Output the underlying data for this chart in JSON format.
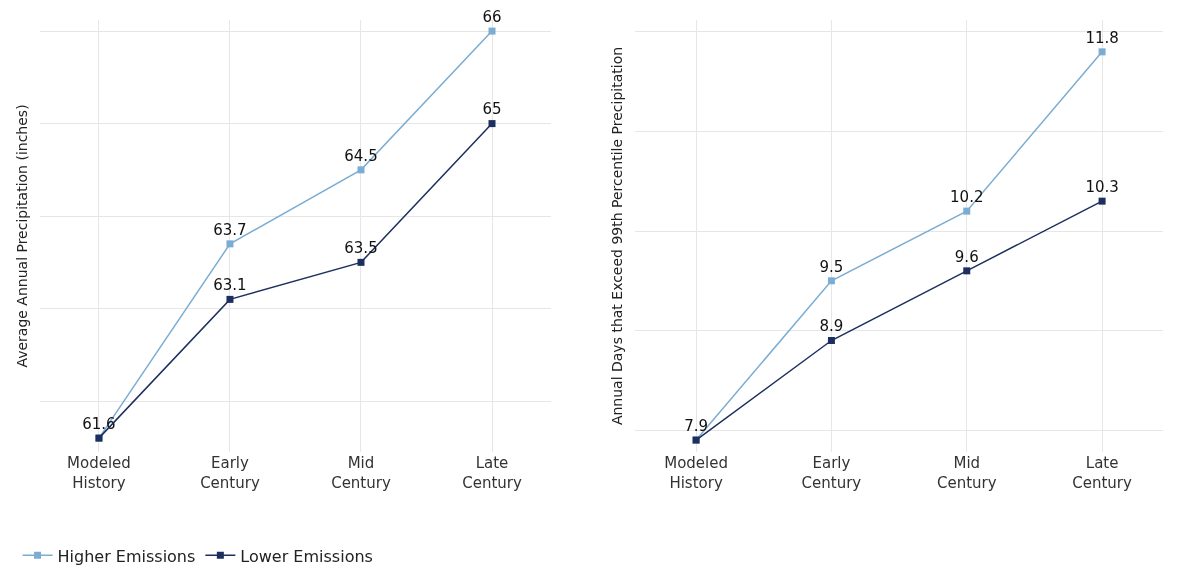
{
  "chart_data": [
    {
      "type": "line",
      "ylabel": "Average Annual Precipitation (inches)",
      "categories": [
        "Modeled\nHistory",
        "Early\nCentury",
        "Mid\nCentury",
        "Late\nCentury"
      ],
      "series": [
        {
          "name": "Higher Emissions",
          "color": "#7badd3",
          "values": [
            61.6,
            63.7,
            64.5,
            66
          ]
        },
        {
          "name": "Lower Emissions",
          "color": "#1c2f5e",
          "values": [
            61.6,
            63.1,
            63.5,
            65
          ],
          "value_labels": [
            null,
            "63.1",
            "63.5",
            "65"
          ]
        }
      ],
      "ylim": [
        61.45,
        66.12
      ],
      "yticks": [
        {
          "value": 62,
          "label": null
        },
        {
          "value": 63,
          "label": null
        },
        {
          "value": 64,
          "label": null
        },
        {
          "value": 65,
          "label": null
        },
        {
          "value": 66,
          "label": null
        }
      ],
      "tick_labels": "x",
      "grid": true,
      "legend": "bottom left",
      "marker": "square",
      "line_style": "solid",
      "data_labels": true
    },
    {
      "type": "line",
      "ylabel": "Annual Days that Exceed 99th Percentile Precipitation",
      "categories": [
        "Modeled\nHistory",
        "Early\nCentury",
        "Mid\nCentury",
        "Late\nCentury"
      ],
      "series": [
        {
          "color": "#7badd3",
          "values": [
            7.9,
            9.5,
            10.2,
            11.8
          ]
        },
        {
          "color": "#1c2f5e",
          "values": [
            7.9,
            8.9,
            9.6,
            10.3
          ],
          "value_labels": [
            null,
            "8.9",
            "9.6",
            "10.3"
          ]
        }
      ],
      "ylim": [
        7.78,
        12.12
      ],
      "yticks": [
        {
          "value": 8,
          "label": null
        },
        {
          "value": 9,
          "label": null
        },
        {
          "value": 10,
          "label": null
        },
        {
          "value": 11,
          "label": null
        },
        {
          "value": 12,
          "label": null
        }
      ],
      "tick_labels": "x",
      "grid": true,
      "marker": "square",
      "line_style": "solid",
      "data_labels": true
    }
  ]
}
